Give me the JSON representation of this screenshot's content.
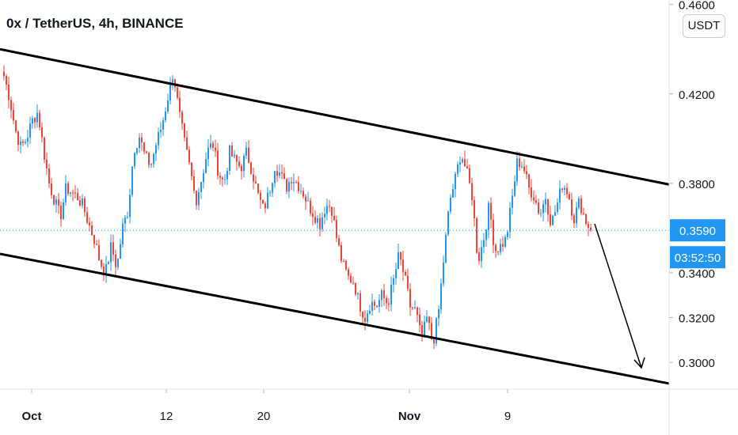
{
  "title": "0x / TetherUS, 4h, BINANCE",
  "currency": "USDT",
  "colors": {
    "up": "#2196f3",
    "down": "#f44336",
    "line": "#000000",
    "price_tag": "#2196f3",
    "axis_text": "#131722"
  },
  "chart_data": {
    "type": "candlestick",
    "title": "0x / TetherUS, 4h, BINANCE",
    "ylim": [
      0.288,
      0.462
    ],
    "y_ticks": [
      "0.4600",
      "0.4200",
      "0.3800",
      "0.3400",
      "0.3200",
      "0.3000"
    ],
    "x_ticks": [
      "Oct",
      "12",
      "20",
      "Nov",
      "9"
    ],
    "current_price": "0.3590",
    "countdown": "03:52:50",
    "price_series": [
      0.428,
      0.418,
      0.404,
      0.396,
      0.4,
      0.408,
      0.412,
      0.395,
      0.38,
      0.372,
      0.365,
      0.378,
      0.376,
      0.374,
      0.37,
      0.362,
      0.355,
      0.345,
      0.34,
      0.352,
      0.342,
      0.36,
      0.368,
      0.395,
      0.401,
      0.392,
      0.388,
      0.398,
      0.406,
      0.418,
      0.43,
      0.412,
      0.398,
      0.386,
      0.372,
      0.382,
      0.394,
      0.398,
      0.385,
      0.38,
      0.394,
      0.39,
      0.387,
      0.394,
      0.385,
      0.375,
      0.368,
      0.376,
      0.388,
      0.384,
      0.378,
      0.383,
      0.38,
      0.376,
      0.37,
      0.366,
      0.362,
      0.37,
      0.37,
      0.355,
      0.344,
      0.338,
      0.336,
      0.326,
      0.32,
      0.327,
      0.325,
      0.33,
      0.326,
      0.336,
      0.348,
      0.338,
      0.325,
      0.323,
      0.31,
      0.32,
      0.308,
      0.322,
      0.348,
      0.372,
      0.382,
      0.394,
      0.385,
      0.374,
      0.345,
      0.355,
      0.37,
      0.35,
      0.352,
      0.355,
      0.372,
      0.39,
      0.388,
      0.378,
      0.374,
      0.366,
      0.374,
      0.362,
      0.37,
      0.38,
      0.376,
      0.364,
      0.372,
      0.364,
      0.359
    ],
    "trendlines": [
      {
        "name": "channel-upper",
        "from": [
          0,
          0.44
        ],
        "to": [
          1,
          0.3795
        ]
      },
      {
        "name": "channel-lower",
        "from": [
          0,
          0.3485
        ],
        "to": [
          1,
          0.2905
        ]
      }
    ]
  }
}
